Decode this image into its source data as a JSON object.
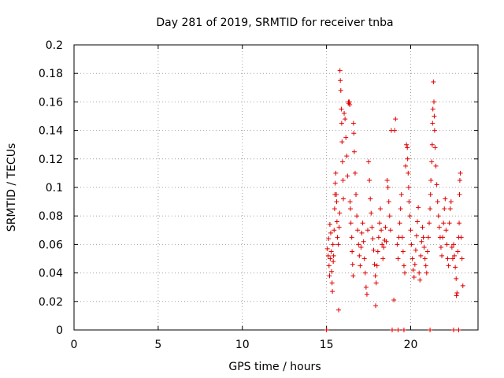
{
  "chart_data": {
    "type": "scatter",
    "title": "Day 281 of 2019, SRMTID for receiver tnba",
    "xlabel": "GPS time / hours",
    "ylabel": "SRMTID / TECUs",
    "xlim": [
      0,
      24
    ],
    "ylim": [
      0,
      0.2
    ],
    "grid": true,
    "marker": "+",
    "color": "#e00000",
    "x_ticks": [
      0,
      5,
      10,
      15,
      20
    ],
    "x_tick_labels": [
      "0",
      "5",
      "10",
      "15",
      "20"
    ],
    "y_ticks": [
      0,
      0.02,
      0.04,
      0.06,
      0.08,
      0.1,
      0.12,
      0.14,
      0.16,
      0.18,
      0.2
    ],
    "y_tick_labels": [
      "0",
      "0.02",
      "0.04",
      "0.06",
      "0.08",
      "0.1",
      "0.12",
      "0.14",
      "0.16",
      "0.18",
      "0.2"
    ],
    "series": [
      {
        "name": "SRMTID",
        "points": [
          [
            15.0,
            0
          ],
          [
            18.9,
            0
          ],
          [
            19.25,
            0
          ],
          [
            19.6,
            0
          ],
          [
            21.15,
            0
          ],
          [
            22.55,
            0
          ],
          [
            22.85,
            0
          ],
          [
            15.05,
            0.057
          ],
          [
            15.1,
            0.052
          ],
          [
            15.12,
            0.064
          ],
          [
            15.15,
            0.045
          ],
          [
            15.18,
            0.038
          ],
          [
            15.2,
            0.074
          ],
          [
            15.22,
            0.05
          ],
          [
            15.25,
            0.068
          ],
          [
            15.28,
            0.055
          ],
          [
            15.3,
            0.041
          ],
          [
            15.33,
            0.033
          ],
          [
            15.35,
            0.027
          ],
          [
            15.38,
            0.06
          ],
          [
            15.4,
            0.048
          ],
          [
            15.42,
            0.052
          ],
          [
            15.45,
            0.07
          ],
          [
            15.48,
            0.085
          ],
          [
            15.5,
            0.095
          ],
          [
            15.52,
            0.103
          ],
          [
            15.55,
            0.11
          ],
          [
            15.58,
            0.095
          ],
          [
            15.6,
            0.09
          ],
          [
            15.62,
            0.076
          ],
          [
            15.65,
            0.065
          ],
          [
            15.7,
            0.06
          ],
          [
            15.72,
            0.014
          ],
          [
            15.75,
            0.072
          ],
          [
            15.78,
            0.082
          ],
          [
            15.8,
            0.182
          ],
          [
            15.82,
            0.175
          ],
          [
            15.85,
            0.168
          ],
          [
            15.88,
            0.155
          ],
          [
            15.9,
            0.145
          ],
          [
            15.92,
            0.132
          ],
          [
            15.95,
            0.118
          ],
          [
            15.98,
            0.105
          ],
          [
            16.0,
            0.092
          ],
          [
            16.05,
            0.152
          ],
          [
            16.1,
            0.148
          ],
          [
            16.15,
            0.135
          ],
          [
            16.2,
            0.122
          ],
          [
            16.25,
            0.108
          ],
          [
            16.3,
            0.16
          ],
          [
            16.32,
            0.159
          ],
          [
            16.35,
            0.16
          ],
          [
            16.38,
            0.158
          ],
          [
            16.4,
            0.09
          ],
          [
            16.42,
            0.085
          ],
          [
            16.45,
            0.075
          ],
          [
            16.5,
            0.065
          ],
          [
            16.52,
            0.055
          ],
          [
            16.55,
            0.046
          ],
          [
            16.58,
            0.038
          ],
          [
            16.6,
            0.145
          ],
          [
            16.62,
            0.138
          ],
          [
            16.65,
            0.125
          ],
          [
            16.7,
            0.11
          ],
          [
            16.75,
            0.095
          ],
          [
            16.8,
            0.08
          ],
          [
            16.85,
            0.07
          ],
          [
            16.9,
            0.06
          ],
          [
            16.95,
            0.052
          ],
          [
            17.0,
            0.045
          ],
          [
            17.05,
            0.058
          ],
          [
            17.1,
            0.068
          ],
          [
            17.15,
            0.075
          ],
          [
            17.2,
            0.062
          ],
          [
            17.25,
            0.05
          ],
          [
            17.3,
            0.04
          ],
          [
            17.35,
            0.03
          ],
          [
            17.4,
            0.025
          ],
          [
            17.45,
            0.07
          ],
          [
            17.5,
            0.118
          ],
          [
            17.55,
            0.105
          ],
          [
            17.6,
            0.092
          ],
          [
            17.65,
            0.082
          ],
          [
            17.7,
            0.072
          ],
          [
            17.75,
            0.064
          ],
          [
            17.8,
            0.056
          ],
          [
            17.85,
            0.046
          ],
          [
            17.9,
            0.038
          ],
          [
            17.92,
            0.017
          ],
          [
            17.95,
            0.033
          ],
          [
            18.0,
            0.045
          ],
          [
            18.05,
            0.055
          ],
          [
            18.1,
            0.065
          ],
          [
            18.15,
            0.075
          ],
          [
            18.2,
            0.085
          ],
          [
            18.25,
            0.07
          ],
          [
            18.3,
            0.06
          ],
          [
            18.35,
            0.05
          ],
          [
            18.4,
            0.058
          ],
          [
            18.45,
            0.063
          ],
          [
            18.5,
            0.072
          ],
          [
            18.55,
            0.062
          ],
          [
            18.6,
            0.105
          ],
          [
            18.65,
            0.1
          ],
          [
            18.7,
            0.09
          ],
          [
            18.75,
            0.08
          ],
          [
            18.8,
            0.07
          ],
          [
            18.85,
            0.14
          ],
          [
            19.05,
            0.14
          ],
          [
            19.0,
            0.021
          ],
          [
            19.1,
            0.148
          ],
          [
            19.2,
            0.06
          ],
          [
            19.25,
            0.05
          ],
          [
            19.3,
            0.065
          ],
          [
            19.35,
            0.075
          ],
          [
            19.4,
            0.085
          ],
          [
            19.45,
            0.095
          ],
          [
            19.5,
            0.065
          ],
          [
            19.55,
            0.055
          ],
          [
            19.6,
            0.045
          ],
          [
            19.65,
            0.04
          ],
          [
            19.7,
            0.115
          ],
          [
            19.75,
            0.13
          ],
          [
            19.8,
            0.128
          ],
          [
            19.82,
            0.12
          ],
          [
            19.85,
            0.11
          ],
          [
            19.88,
            0.1
          ],
          [
            19.9,
            0.09
          ],
          [
            19.95,
            0.08
          ],
          [
            20.0,
            0.07
          ],
          [
            20.05,
            0.06
          ],
          [
            20.1,
            0.05
          ],
          [
            20.15,
            0.042
          ],
          [
            20.2,
            0.037
          ],
          [
            20.25,
            0.046
          ],
          [
            20.3,
            0.056
          ],
          [
            20.35,
            0.066
          ],
          [
            20.4,
            0.076
          ],
          [
            20.45,
            0.086
          ],
          [
            20.5,
            0.04
          ],
          [
            20.55,
            0.035
          ],
          [
            20.6,
            0.052
          ],
          [
            20.65,
            0.062
          ],
          [
            20.7,
            0.072
          ],
          [
            20.75,
            0.065
          ],
          [
            20.8,
            0.058
          ],
          [
            20.85,
            0.05
          ],
          [
            20.9,
            0.045
          ],
          [
            20.95,
            0.04
          ],
          [
            21.0,
            0.055
          ],
          [
            21.05,
            0.065
          ],
          [
            21.1,
            0.075
          ],
          [
            21.15,
            0.085
          ],
          [
            21.18,
            0.095
          ],
          [
            21.2,
            0.105
          ],
          [
            21.25,
            0.118
          ],
          [
            21.28,
            0.13
          ],
          [
            21.3,
            0.145
          ],
          [
            21.32,
            0.155
          ],
          [
            21.35,
            0.174
          ],
          [
            21.38,
            0.16
          ],
          [
            21.4,
            0.15
          ],
          [
            21.42,
            0.14
          ],
          [
            21.45,
            0.128
          ],
          [
            21.5,
            0.115
          ],
          [
            21.55,
            0.102
          ],
          [
            21.6,
            0.09
          ],
          [
            21.65,
            0.08
          ],
          [
            21.7,
            0.072
          ],
          [
            21.75,
            0.065
          ],
          [
            21.8,
            0.058
          ],
          [
            21.85,
            0.052
          ],
          [
            21.9,
            0.065
          ],
          [
            21.95,
            0.075
          ],
          [
            22.0,
            0.085
          ],
          [
            22.05,
            0.092
          ],
          [
            22.1,
            0.07
          ],
          [
            22.15,
            0.06
          ],
          [
            22.2,
            0.05
          ],
          [
            22.25,
            0.045
          ],
          [
            22.3,
            0.075
          ],
          [
            22.35,
            0.085
          ],
          [
            22.4,
            0.09
          ],
          [
            22.45,
            0.058
          ],
          [
            22.5,
            0.05
          ],
          [
            22.55,
            0.06
          ],
          [
            22.6,
            0.052
          ],
          [
            22.65,
            0.044
          ],
          [
            22.7,
            0.036
          ],
          [
            22.72,
            0.024
          ],
          [
            22.75,
            0.026
          ],
          [
            22.8,
            0.055
          ],
          [
            22.85,
            0.065
          ],
          [
            22.88,
            0.075
          ],
          [
            22.9,
            0.095
          ],
          [
            22.92,
            0.105
          ],
          [
            22.95,
            0.11
          ],
          [
            23.0,
            0.065
          ],
          [
            23.05,
            0.05
          ],
          [
            23.1,
            0.031
          ]
        ]
      }
    ]
  }
}
